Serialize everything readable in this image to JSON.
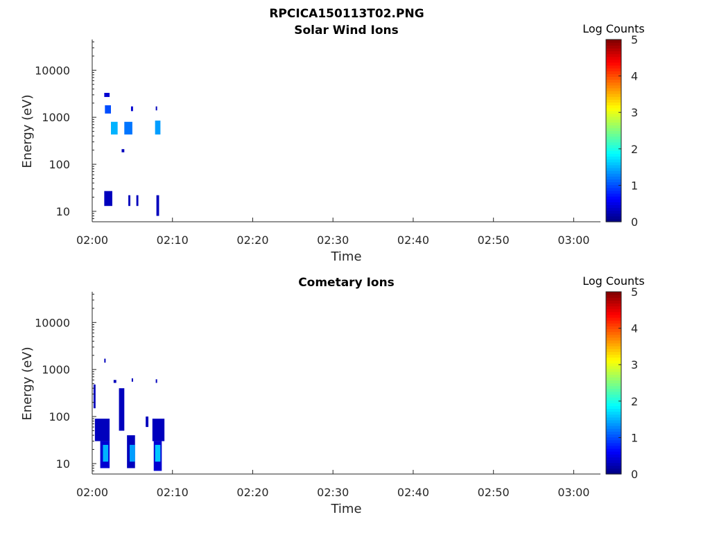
{
  "figure": {
    "title": "RPCICA150113T02.PNG"
  },
  "colorbar": {
    "label": "Log Counts",
    "ticks": [
      "0",
      "1",
      "2",
      "3",
      "4",
      "5"
    ],
    "colormap": "jet",
    "range": [
      0,
      5
    ]
  },
  "chart_data": [
    {
      "type": "heatmap",
      "title": "Solar Wind Ions",
      "xlabel": "Time",
      "ylabel": "Energy (eV)",
      "x_ticks": [
        "02:00",
        "02:10",
        "02:20",
        "02:30",
        "02:40",
        "02:50",
        "03:00"
      ],
      "y_ticks": [
        "10",
        "100",
        "1000",
        "10000"
      ],
      "xlim": [
        "02:00",
        "03:03:20"
      ],
      "ylim": [
        6,
        45000
      ],
      "yscale": "log",
      "z_label": "Log Counts",
      "zlim": [
        0,
        5
      ],
      "cells": [
        {
          "t0": "02:01:30",
          "t1": "02:02:30",
          "e0": 13,
          "e1": 27,
          "v": 0.3
        },
        {
          "t0": "02:04:30",
          "t1": "02:04:45",
          "e0": 13,
          "e1": 22,
          "v": 0.3
        },
        {
          "t0": "02:05:30",
          "t1": "02:05:45",
          "e0": 13,
          "e1": 22,
          "v": 0.3
        },
        {
          "t0": "02:08:00",
          "t1": "02:08:20",
          "e0": 8,
          "e1": 22,
          "v": 0.3
        },
        {
          "t0": "02:01:30",
          "t1": "02:02:10",
          "e0": 2700,
          "e1": 3300,
          "v": 0.4
        },
        {
          "t0": "02:01:35",
          "t1": "02:02:20",
          "e0": 1200,
          "e1": 1800,
          "v": 1.0
        },
        {
          "t0": "02:02:20",
          "t1": "02:03:10",
          "e0": 430,
          "e1": 800,
          "v": 1.5
        },
        {
          "t0": "02:04:00",
          "t1": "02:05:00",
          "e0": 430,
          "e1": 800,
          "v": 1.2
        },
        {
          "t0": "02:04:50",
          "t1": "02:05:05",
          "e0": 1350,
          "e1": 1700,
          "v": 0.4
        },
        {
          "t0": "02:07:50",
          "t1": "02:08:30",
          "e0": 430,
          "e1": 850,
          "v": 1.4
        },
        {
          "t0": "02:07:55",
          "t1": "02:08:05",
          "e0": 1400,
          "e1": 1700,
          "v": 0.3
        },
        {
          "t0": "02:03:40",
          "t1": "02:04:00",
          "e0": 180,
          "e1": 210,
          "v": 0.3
        }
      ]
    },
    {
      "type": "heatmap",
      "title": "Cometary Ions",
      "xlabel": "Time",
      "ylabel": "Energy (eV)",
      "x_ticks": [
        "02:00",
        "02:10",
        "02:20",
        "02:30",
        "02:40",
        "02:50",
        "03:00"
      ],
      "y_ticks": [
        "10",
        "100",
        "1000",
        "10000"
      ],
      "xlim": [
        "02:00",
        "03:03:20"
      ],
      "ylim": [
        6,
        45000
      ],
      "yscale": "log",
      "z_label": "Log Counts",
      "zlim": [
        0,
        5
      ],
      "cells": [
        {
          "t0": "02:00:10",
          "t1": "02:00:25",
          "e0": 150,
          "e1": 480,
          "v": 0.3
        },
        {
          "t0": "02:00:20",
          "t1": "02:02:10",
          "e0": 30,
          "e1": 90,
          "v": 0.3
        },
        {
          "t0": "02:01:00",
          "t1": "02:02:10",
          "e0": 8,
          "e1": 30,
          "v": 0.4
        },
        {
          "t0": "02:01:20",
          "t1": "02:02:00",
          "e0": 11,
          "e1": 25,
          "v": 1.5
        },
        {
          "t0": "02:01:30",
          "t1": "02:01:40",
          "e0": 1400,
          "e1": 1700,
          "v": 0.3
        },
        {
          "t0": "02:02:40",
          "t1": "02:03:00",
          "e0": 520,
          "e1": 600,
          "v": 0.3
        },
        {
          "t0": "02:03:20",
          "t1": "02:04:00",
          "e0": 50,
          "e1": 400,
          "v": 0.3
        },
        {
          "t0": "02:04:20",
          "t1": "02:05:20",
          "e0": 8,
          "e1": 40,
          "v": 0.3
        },
        {
          "t0": "02:04:40",
          "t1": "02:05:20",
          "e0": 11,
          "e1": 25,
          "v": 1.4
        },
        {
          "t0": "02:04:55",
          "t1": "02:05:05",
          "e0": 550,
          "e1": 650,
          "v": 0.3
        },
        {
          "t0": "02:06:40",
          "t1": "02:07:00",
          "e0": 60,
          "e1": 100,
          "v": 0.3
        },
        {
          "t0": "02:07:30",
          "t1": "02:09:00",
          "e0": 30,
          "e1": 90,
          "v": 0.3
        },
        {
          "t0": "02:07:40",
          "t1": "02:08:40",
          "e0": 7,
          "e1": 30,
          "v": 0.4
        },
        {
          "t0": "02:07:50",
          "t1": "02:08:30",
          "e0": 11,
          "e1": 25,
          "v": 1.6
        },
        {
          "t0": "02:07:55",
          "t1": "02:08:05",
          "e0": 520,
          "e1": 620,
          "v": 0.3
        }
      ]
    }
  ]
}
